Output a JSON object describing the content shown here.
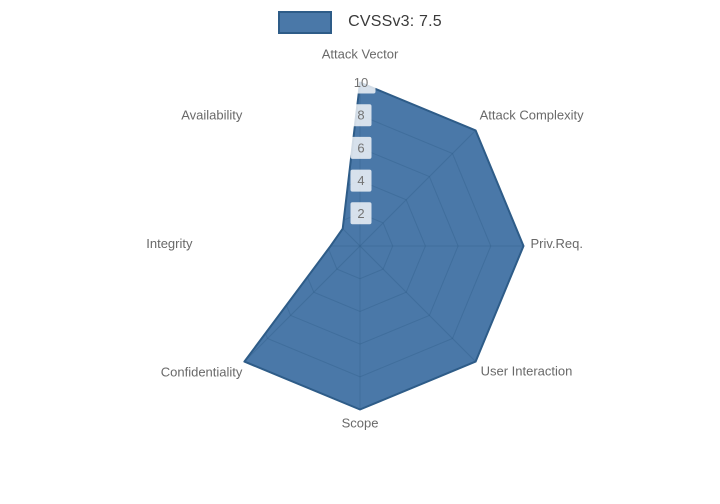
{
  "legend": {
    "label": "CVSSv3: 7.5",
    "swatch_color": "#4a78a8",
    "swatch_border": "#2e5c88"
  },
  "chart_data": {
    "type": "radar",
    "categories": [
      "Attack Vector",
      "Attack Complexity",
      "Priv.Req.",
      "User Interaction",
      "Scope",
      "Confidentiality",
      "Integrity",
      "Availability"
    ],
    "series": [
      {
        "name": "CVSSv3: 7.5",
        "values": [
          10,
          10,
          10,
          10,
          10,
          10,
          1.8,
          1.5
        ]
      }
    ],
    "radial_ticks": [
      2,
      4,
      6,
      8,
      10
    ],
    "radial_range": [
      0,
      10
    ],
    "grid": "on",
    "legend_position": "top-center",
    "colors": {
      "fill": "#4a78a8",
      "outline": "#2e5c88",
      "grid_line": "#2e5c88",
      "category_label": "#696969",
      "tick_text": "#737373",
      "tick_box": "rgba(255,255,255,0.78)"
    }
  }
}
